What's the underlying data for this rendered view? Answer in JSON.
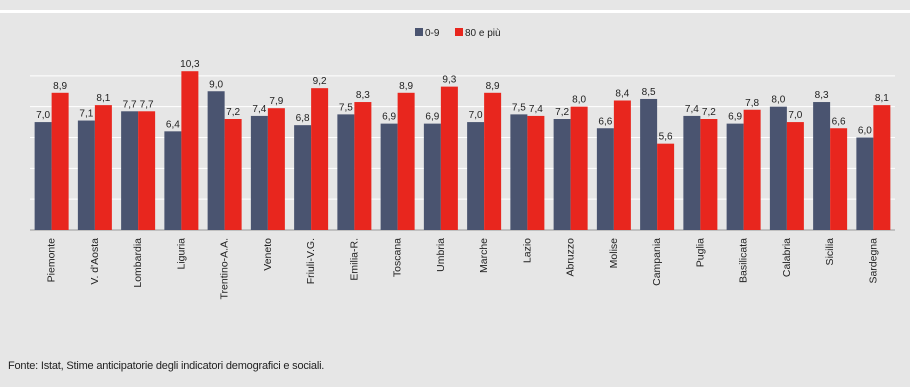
{
  "chart_data": {
    "type": "bar",
    "categories": [
      "Piemonte",
      "V. d'Aosta",
      "Lombardia",
      "Liguria",
      "Trentino-A.A.",
      "Veneto",
      "Friuli-V.G.",
      "Emilia-R.",
      "Toscana",
      "Umbria",
      "Marche",
      "Lazio",
      "Abruzzo",
      "Molise",
      "Campania",
      "Puglia",
      "Basilicata",
      "Calabria",
      "Sicilia",
      "Sardegna"
    ],
    "series": [
      {
        "name": "0-9",
        "color": "#4a5470",
        "values": [
          7.0,
          7.1,
          7.7,
          6.4,
          9.0,
          7.4,
          6.8,
          7.5,
          6.9,
          6.9,
          7.0,
          7.5,
          7.2,
          6.6,
          8.5,
          7.4,
          6.9,
          8.0,
          8.3,
          6.0
        ],
        "labels": [
          "7,0",
          "7,1",
          "7,7",
          "6,4",
          "9,0",
          "7,4",
          "6,8",
          "7,5",
          "6,9",
          "6,9",
          "7,0",
          "7,5",
          "7,2",
          "6,6",
          "8,5",
          "7,4",
          "6,9",
          "8,0",
          "8,3",
          "6,0"
        ]
      },
      {
        "name": "80 e più",
        "color": "#e8261e",
        "values": [
          8.9,
          8.1,
          7.7,
          10.3,
          7.2,
          7.9,
          9.2,
          8.3,
          8.9,
          9.3,
          8.9,
          7.4,
          8.0,
          8.4,
          5.6,
          7.2,
          7.8,
          7.0,
          6.6,
          8.1
        ],
        "labels": [
          "8,9",
          "8,1",
          "7,7",
          "10,3",
          "7,2",
          "7,9",
          "9,2",
          "8,3",
          "8,9",
          "9,3",
          "8,9",
          "7,4",
          "8,0",
          "8,4",
          "5,6",
          "7,2",
          "7,8",
          "7,0",
          "6,6",
          "8,1"
        ]
      }
    ],
    "ylim": [
      0,
      12
    ],
    "grid": true,
    "legend": "top-center"
  },
  "source": "Fonte: Istat, Stime anticipatorie degli indicatori demografici e sociali."
}
